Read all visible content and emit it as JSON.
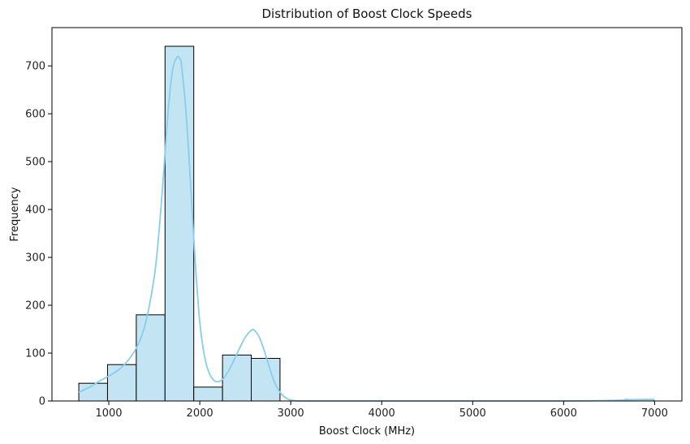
{
  "chart_data": {
    "type": "bar",
    "subtype": "histogram",
    "title": "Distribution of Boost Clock Speeds",
    "xlabel": "Boost Clock (MHz)",
    "ylabel": "Frequency",
    "xlim": [
      375,
      7300
    ],
    "ylim": [
      0,
      780
    ],
    "x_ticks": [
      1000,
      2000,
      3000,
      4000,
      5000,
      6000,
      7000
    ],
    "y_ticks": [
      0,
      100,
      200,
      300,
      400,
      500,
      600,
      700
    ],
    "bin_edges": [
      670,
      986,
      1302,
      1618,
      1934,
      2250,
      2566,
      2882,
      3198,
      3514,
      3830,
      4146,
      4462,
      4778,
      5094,
      5410,
      5726,
      6042,
      6358,
      6674,
      6990
    ],
    "values": [
      37,
      76,
      180,
      741,
      29,
      96,
      89,
      0,
      0,
      0,
      0,
      0,
      0,
      0,
      0,
      0,
      0,
      0,
      0,
      3
    ],
    "kde": {
      "x": [
        670,
        800,
        900,
        1000,
        1100,
        1200,
        1300,
        1400,
        1500,
        1550,
        1600,
        1650,
        1700,
        1750,
        1780,
        1800,
        1850,
        1900,
        1950,
        2000,
        2050,
        2100,
        2150,
        2200,
        2250,
        2300,
        2350,
        2400,
        2450,
        2500,
        2550,
        2580,
        2600,
        2650,
        2700,
        2750,
        2800,
        2850,
        2900,
        2950,
        3000,
        3100,
        3300,
        4000,
        5000,
        6000,
        6500,
        6800,
        7000
      ],
      "y": [
        18,
        30,
        42,
        52,
        64,
        82,
        110,
        160,
        260,
        350,
        470,
        600,
        690,
        718,
        715,
        700,
        600,
        450,
        290,
        165,
        95,
        60,
        44,
        40,
        45,
        58,
        75,
        95,
        115,
        133,
        145,
        149,
        148,
        135,
        110,
        80,
        50,
        28,
        14,
        6,
        2,
        0,
        0,
        0,
        0,
        0,
        1,
        3,
        3
      ]
    },
    "bar_color": "#c3e4f3",
    "bar_edge_color": "#000000",
    "line_color": "#87ceeb",
    "grid": false
  }
}
